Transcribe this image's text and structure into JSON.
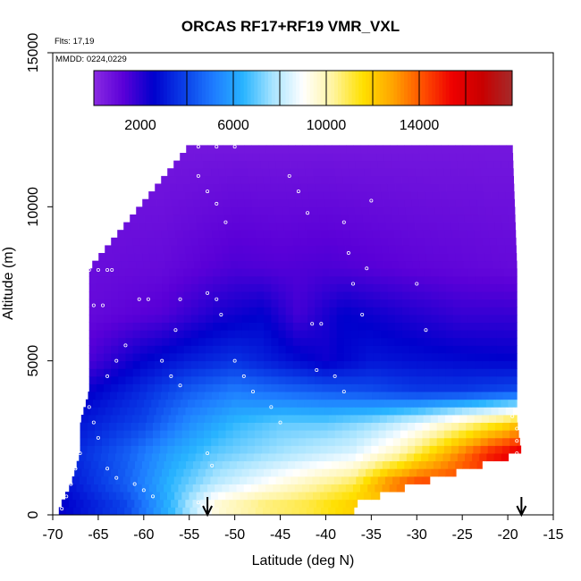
{
  "chart_data": {
    "type": "heatmap",
    "title": "ORCAS RF17+RF19 VMR_VXL",
    "notes": [
      "Flts: 17,19",
      "MMDD: 0224,0229"
    ],
    "xlabel": "Latitude (deg N)",
    "ylabel": "Altitude (m)",
    "xlim": [
      -70,
      -15
    ],
    "ylim": [
      0,
      15000
    ],
    "x_ticks": [
      -70,
      -65,
      -60,
      -55,
      -50,
      -45,
      -40,
      -35,
      -30,
      -25,
      -20,
      -15
    ],
    "y_ticks": [
      0,
      5000,
      10000,
      15000
    ],
    "colorbar": {
      "range": [
        0,
        18000
      ],
      "ticks": [
        2000,
        6000,
        10000,
        14000
      ],
      "colors": [
        "#8a2be2",
        "#5a00d8",
        "#0000cd",
        "#0a3ee8",
        "#1e7cff",
        "#28b4ff",
        "#a8e4ff",
        "#ffffff",
        "#fff4a0",
        "#ffe000",
        "#ffa500",
        "#ff5000",
        "#ee0000",
        "#c80000",
        "#a52a2a"
      ]
    },
    "arrows_latitude": [
      -53,
      -18.5
    ],
    "profile": [
      {
        "alt": 12000,
        "values": [
          [
            -55,
            600
          ],
          [
            -48,
            600
          ],
          [
            -40,
            600
          ],
          [
            -30,
            600
          ],
          [
            -19.5,
            600
          ]
        ]
      },
      {
        "alt": 8000,
        "values": [
          [
            -66,
            900
          ],
          [
            -58,
            1000
          ],
          [
            -50,
            1500
          ],
          [
            -45,
            1400
          ],
          [
            -40,
            1500
          ],
          [
            -30,
            1200
          ],
          [
            -19,
            1000
          ]
        ]
      },
      {
        "alt": 6500,
        "values": [
          [
            -66,
            1000
          ],
          [
            -58,
            1400
          ],
          [
            -52,
            2200
          ],
          [
            -47,
            2600
          ],
          [
            -43,
            1600
          ],
          [
            -38,
            2600
          ],
          [
            -32,
            2200
          ],
          [
            -25,
            1800
          ],
          [
            -19,
            1800
          ]
        ]
      },
      {
        "alt": 5000,
        "values": [
          [
            -66,
            1500
          ],
          [
            -60,
            2600
          ],
          [
            -55,
            3200
          ],
          [
            -50,
            3600
          ],
          [
            -45,
            3000
          ],
          [
            -40,
            2400
          ],
          [
            -35,
            3000
          ],
          [
            -28,
            2800
          ],
          [
            -19,
            2600
          ]
        ]
      },
      {
        "alt": 4000,
        "values": [
          [
            -66,
            2500
          ],
          [
            -60,
            3500
          ],
          [
            -55,
            4500
          ],
          [
            -50,
            5200
          ],
          [
            -45,
            4800
          ],
          [
            -40,
            4500
          ],
          [
            -35,
            4200
          ],
          [
            -30,
            3800
          ],
          [
            -25,
            3800
          ],
          [
            -19,
            4200
          ]
        ]
      },
      {
        "alt": 3000,
        "values": [
          [
            -67,
            3000
          ],
          [
            -60,
            4000
          ],
          [
            -55,
            5500
          ],
          [
            -50,
            6500
          ],
          [
            -45,
            7000
          ],
          [
            -40,
            7000
          ],
          [
            -35,
            7500
          ],
          [
            -30,
            8500
          ],
          [
            -25,
            10000
          ],
          [
            -20,
            11500
          ],
          [
            -19,
            12000
          ]
        ]
      },
      {
        "alt": 2000,
        "values": [
          [
            -67,
            3500
          ],
          [
            -62,
            4500
          ],
          [
            -57,
            6000
          ],
          [
            -52,
            7000
          ],
          [
            -47,
            7500
          ],
          [
            -42,
            8000
          ],
          [
            -37,
            8500
          ],
          [
            -32,
            10000
          ],
          [
            -27,
            12500
          ],
          [
            -22,
            15000
          ],
          [
            -18.5,
            16000
          ]
        ]
      },
      {
        "alt": 1000,
        "values": [
          [
            -68,
            3000
          ],
          [
            -62,
            4500
          ],
          [
            -57,
            6500
          ],
          [
            -52,
            8000
          ],
          [
            -47,
            9000
          ],
          [
            -42,
            10000
          ],
          [
            -37,
            11000
          ],
          [
            -33,
            13500
          ],
          [
            -30,
            14500
          ]
        ]
      },
      {
        "alt": 400,
        "values": [
          [
            -69,
            2500
          ],
          [
            -62,
            4000
          ],
          [
            -57,
            6500
          ],
          [
            -52,
            9500
          ],
          [
            -47,
            10500
          ],
          [
            -42,
            11000
          ],
          [
            -36.5,
            12000
          ]
        ]
      }
    ],
    "flight_track": [
      {
        "lat": -54,
        "alt": 11950
      },
      {
        "lat": -52,
        "alt": 11950
      },
      {
        "lat": -50,
        "alt": 11950
      },
      {
        "lat": -66,
        "alt": 7950
      },
      {
        "lat": -65,
        "alt": 7950
      },
      {
        "lat": -64,
        "alt": 7950
      },
      {
        "lat": -63.5,
        "alt": 7950
      },
      {
        "lat": -54,
        "alt": 11000
      },
      {
        "lat": -53,
        "alt": 10500
      },
      {
        "lat": -52,
        "alt": 10100
      },
      {
        "lat": -51,
        "alt": 9500
      },
      {
        "lat": -53,
        "alt": 7200
      },
      {
        "lat": -52,
        "alt": 7000
      },
      {
        "lat": -51.5,
        "alt": 6500
      },
      {
        "lat": -41.5,
        "alt": 6200
      },
      {
        "lat": -40.5,
        "alt": 6200
      },
      {
        "lat": -60.5,
        "alt": 7000
      },
      {
        "lat": -59.5,
        "alt": 7000
      },
      {
        "lat": -65.5,
        "alt": 6800
      },
      {
        "lat": -64.5,
        "alt": 6800
      },
      {
        "lat": -56,
        "alt": 7000
      },
      {
        "lat": -56.5,
        "alt": 6000
      },
      {
        "lat": -44,
        "alt": 11000
      },
      {
        "lat": -43,
        "alt": 10500
      },
      {
        "lat": -42,
        "alt": 9800
      },
      {
        "lat": -38,
        "alt": 9500
      },
      {
        "lat": -37.5,
        "alt": 8500
      },
      {
        "lat": -37,
        "alt": 7500
      },
      {
        "lat": -35,
        "alt": 10200
      },
      {
        "lat": -35.5,
        "alt": 8000
      },
      {
        "lat": -36,
        "alt": 6500
      },
      {
        "lat": -30,
        "alt": 7500
      },
      {
        "lat": -29,
        "alt": 6000
      },
      {
        "lat": -62,
        "alt": 5500
      },
      {
        "lat": -63,
        "alt": 5000
      },
      {
        "lat": -64,
        "alt": 4500
      },
      {
        "lat": -58,
        "alt": 5000
      },
      {
        "lat": -57,
        "alt": 4500
      },
      {
        "lat": -56,
        "alt": 4200
      },
      {
        "lat": -50,
        "alt": 5000
      },
      {
        "lat": -49,
        "alt": 4500
      },
      {
        "lat": -48,
        "alt": 4000
      },
      {
        "lat": -46,
        "alt": 3500
      },
      {
        "lat": -45,
        "alt": 3000
      },
      {
        "lat": -41,
        "alt": 4700
      },
      {
        "lat": -39,
        "alt": 4500
      },
      {
        "lat": -38,
        "alt": 4000
      },
      {
        "lat": -66,
        "alt": 3500
      },
      {
        "lat": -65.5,
        "alt": 3000
      },
      {
        "lat": -65,
        "alt": 2500
      },
      {
        "lat": -67,
        "alt": 2000
      },
      {
        "lat": -67.5,
        "alt": 1500
      },
      {
        "lat": -68,
        "alt": 1000
      },
      {
        "lat": -68.5,
        "alt": 600
      },
      {
        "lat": -69,
        "alt": 200
      },
      {
        "lat": -64,
        "alt": 1500
      },
      {
        "lat": -63,
        "alt": 1200
      },
      {
        "lat": -61,
        "alt": 1000
      },
      {
        "lat": -60,
        "alt": 800
      },
      {
        "lat": -59,
        "alt": 600
      },
      {
        "lat": -54,
        "alt": 400
      },
      {
        "lat": -53.5,
        "alt": 300
      },
      {
        "lat": -53,
        "alt": 2000
      },
      {
        "lat": -52.5,
        "alt": 1600
      },
      {
        "lat": -19.5,
        "alt": 3200
      },
      {
        "lat": -19,
        "alt": 2800
      },
      {
        "lat": -19,
        "alt": 2400
      },
      {
        "lat": -19,
        "alt": 2000
      },
      {
        "lat": -19,
        "alt": 1600
      }
    ]
  }
}
